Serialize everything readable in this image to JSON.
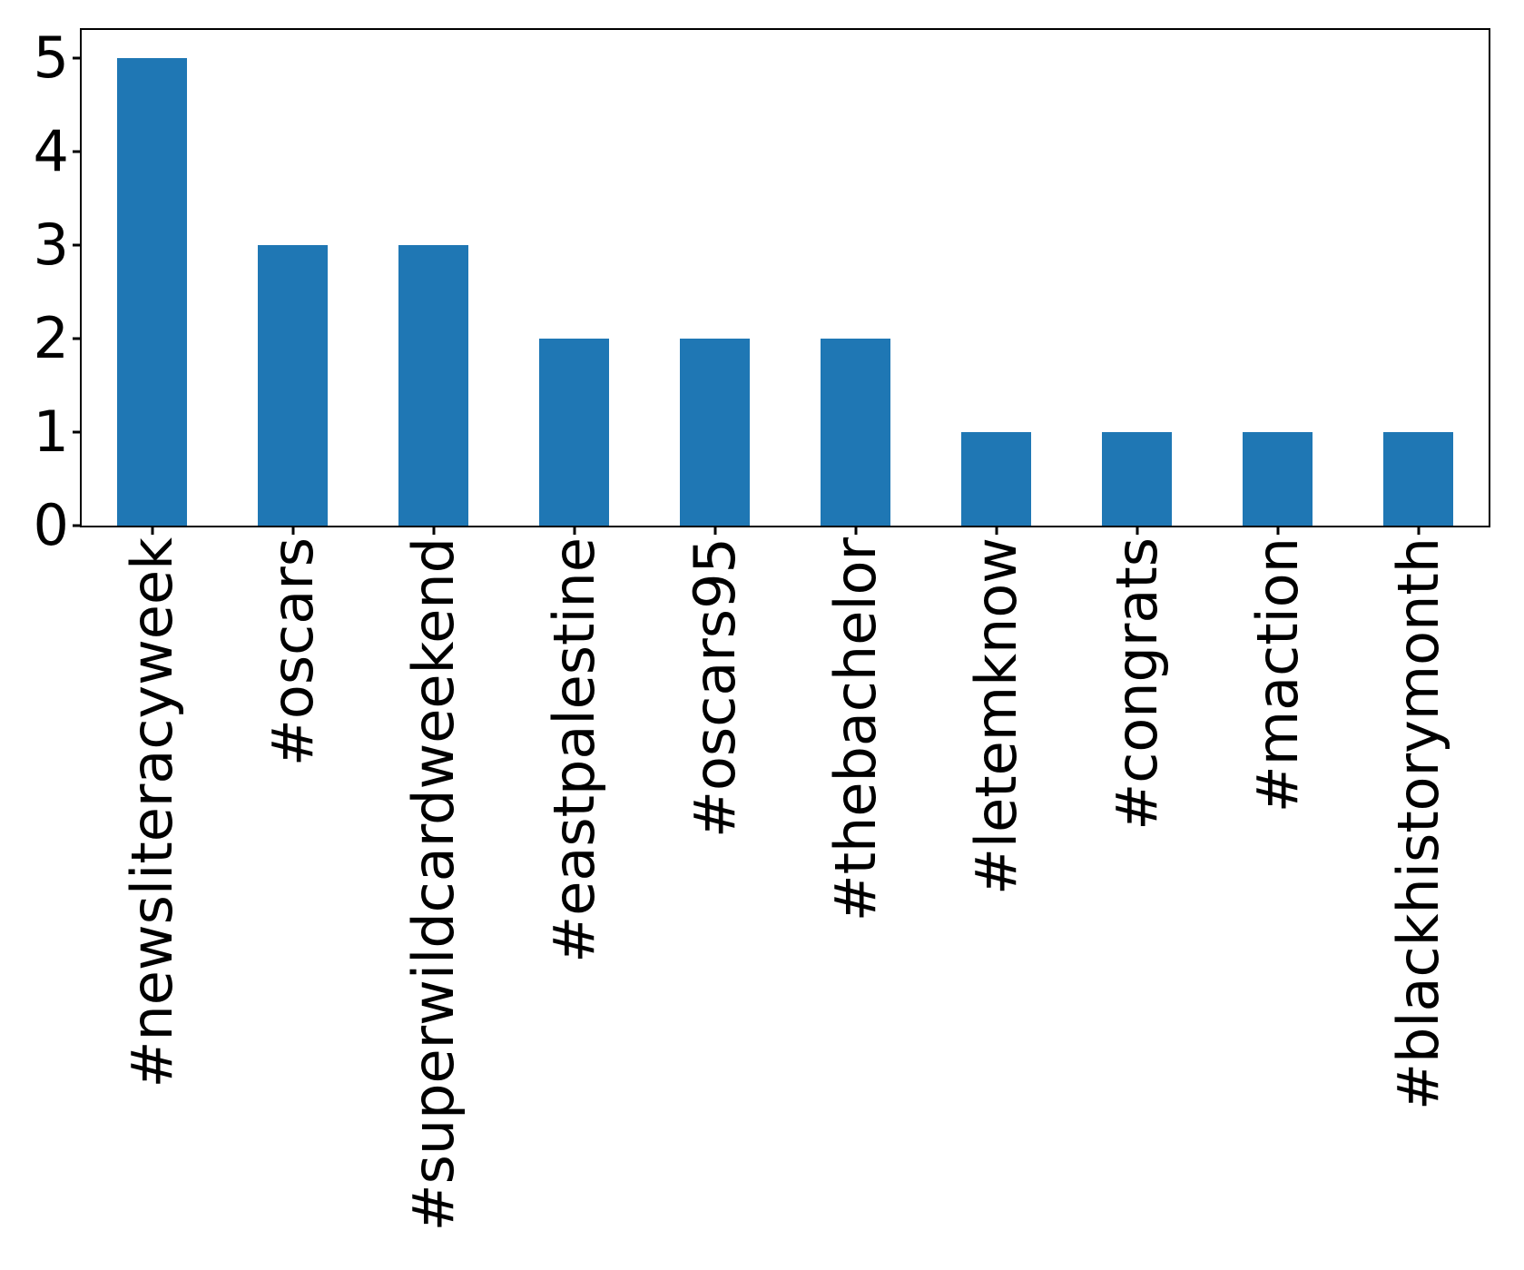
{
  "figure": {
    "background": "#ffffff",
    "title": ""
  },
  "chart_data": {
    "type": "bar",
    "title": "",
    "xlabel": "",
    "ylabel": "",
    "categories": [
      "#newsliteracyweek",
      "#oscars",
      "#superwildcardweekend",
      "#eastpalestine",
      "#oscars95",
      "#thebachelor",
      "#letemknow",
      "#congrats",
      "#maction",
      "#blackhistorymonth"
    ],
    "values": [
      5,
      3,
      3,
      2,
      2,
      2,
      1,
      1,
      1,
      1
    ],
    "yticks": [
      0,
      1,
      2,
      3,
      4,
      5
    ],
    "ylim": [
      0,
      5.3
    ],
    "bar_color": "#1f77b4",
    "axis_color": "#000000",
    "text_color": "#000000",
    "grid": false,
    "legend": null,
    "x_tick_label_rotation": 90,
    "bar_width_fraction": 0.5
  }
}
